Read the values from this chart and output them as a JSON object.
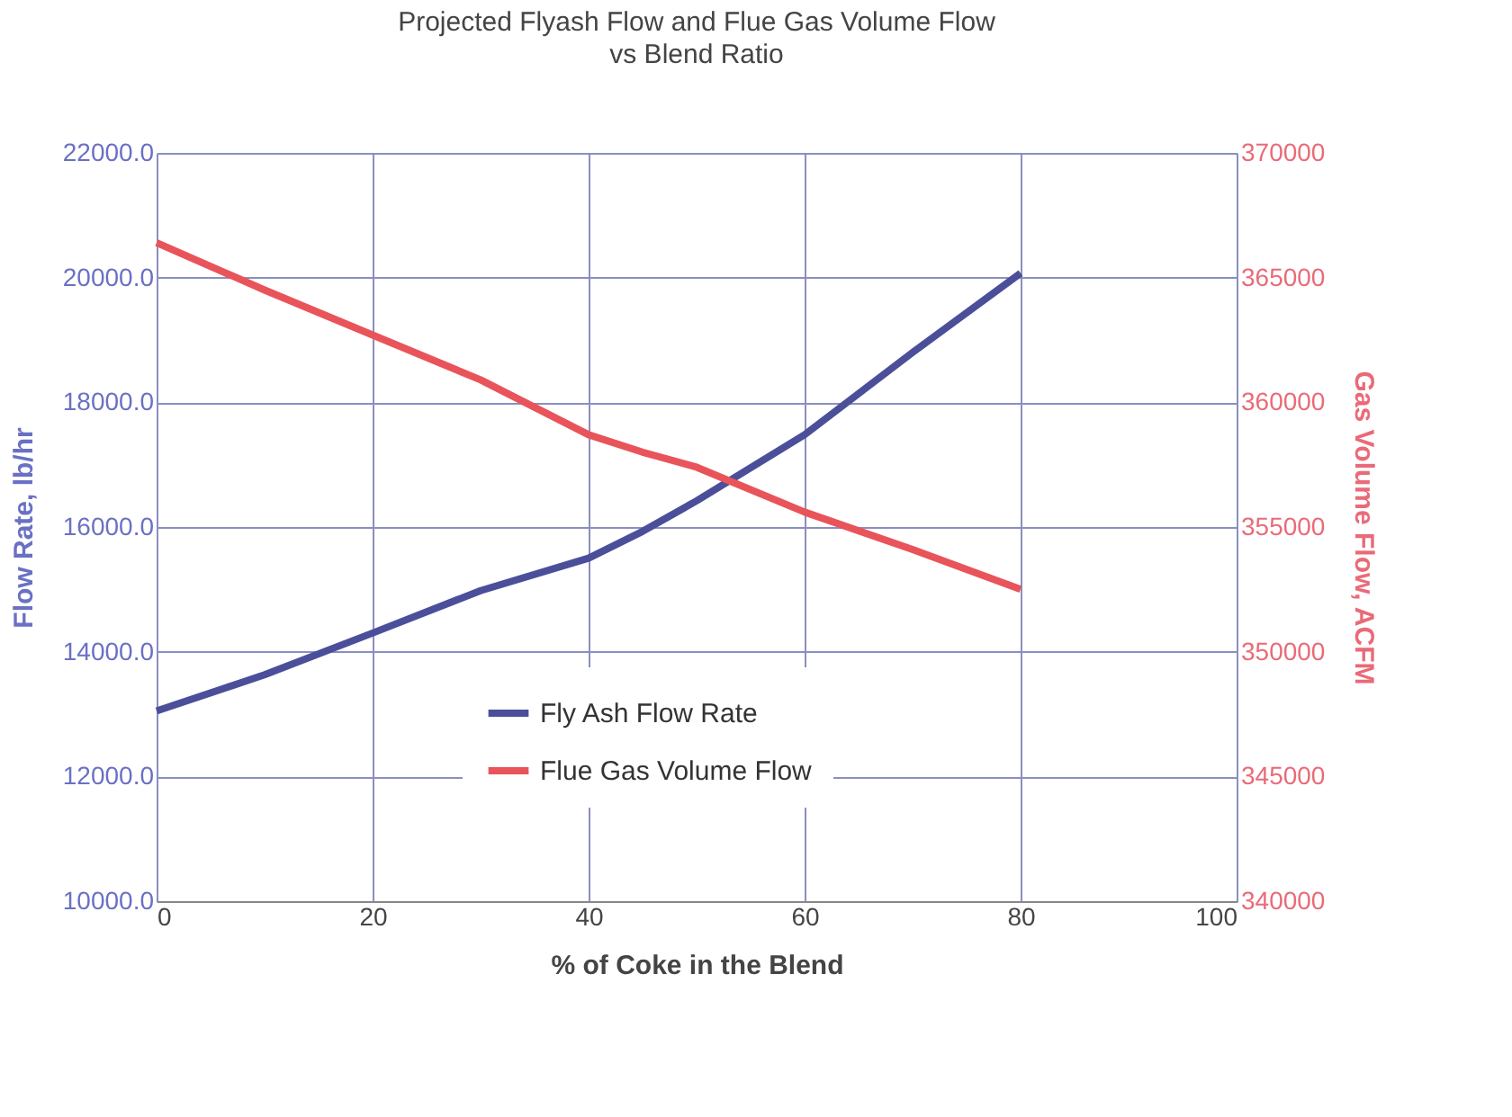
{
  "chart_data": {
    "type": "line",
    "title": "Projected Flyash Flow and Flue Gas Volume Flow",
    "subtitle": "vs Blend Ratio",
    "xlabel": "% of Coke in the Blend",
    "ylabel": "Flow Rate, lb/hr",
    "y2label": "Gas Volume Flow, ACFM",
    "xlim": [
      0,
      100
    ],
    "xticks": [
      0,
      20,
      40,
      60,
      80,
      100
    ],
    "ylim": [
      10000,
      22000
    ],
    "yticks": [
      {
        "value": 10000,
        "label": "10000.0"
      },
      {
        "value": 12000,
        "label": "12000.0"
      },
      {
        "value": 14000,
        "label": "14000.0"
      },
      {
        "value": 16000,
        "label": "16000.0"
      },
      {
        "value": 18000,
        "label": "18000.0"
      },
      {
        "value": 20000,
        "label": "20000.0"
      },
      {
        "value": 22000,
        "label": "22000.0"
      }
    ],
    "y2lim": [
      340000,
      370000
    ],
    "y2ticks": [
      340000,
      345000,
      350000,
      355000,
      360000,
      365000,
      370000
    ],
    "series": [
      {
        "name": "Fly Ash Flow Rate",
        "color": "#4b4f9a",
        "x": [
          0,
          10,
          20,
          30,
          40,
          45,
          50,
          60,
          70,
          80
        ],
        "values": [
          13050,
          13630,
          14300,
          14980,
          15500,
          15930,
          16420,
          17480,
          18800,
          20070
        ]
      },
      {
        "name": "Flue Gas Volume Flow",
        "color": "#e8545a",
        "axis": "y2",
        "x": [
          0,
          10,
          20,
          30,
          35,
          40,
          45,
          50,
          60,
          70,
          80
        ],
        "values": [
          366400,
          364500,
          362700,
          360900,
          359800,
          358700,
          358000,
          357400,
          355600,
          354100,
          352500
        ]
      }
    ],
    "grid": true,
    "legend": "bottom",
    "marker": "none",
    "line_style": "solid"
  }
}
